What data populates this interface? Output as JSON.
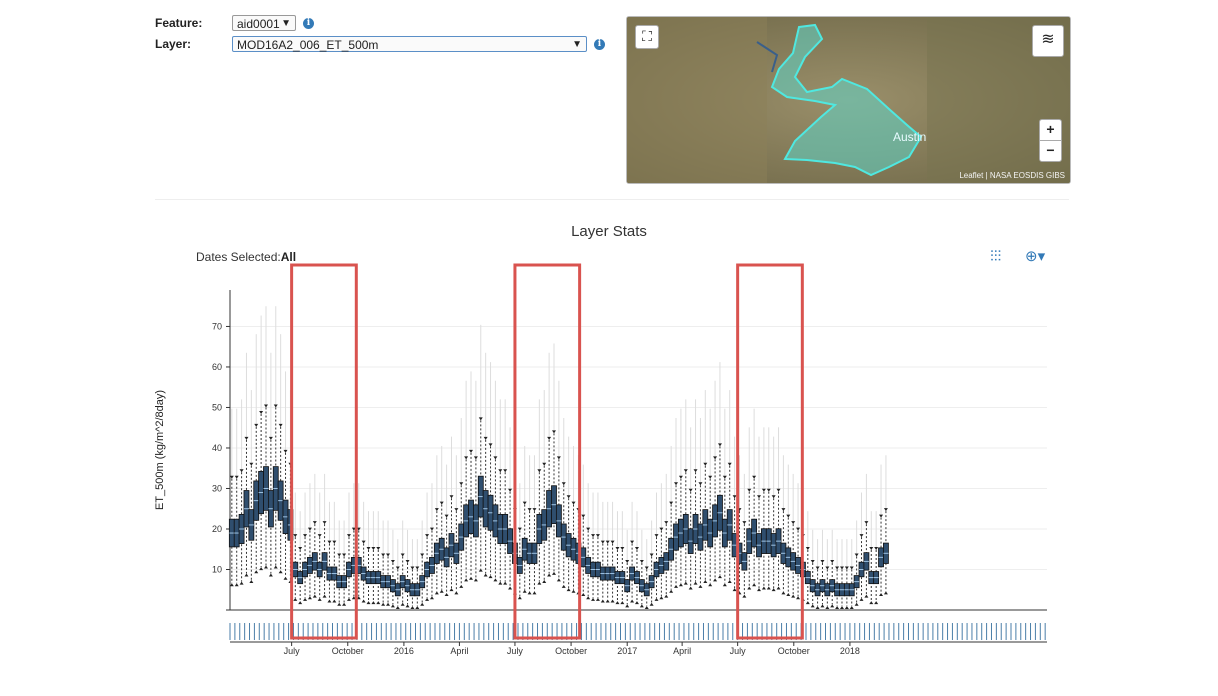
{
  "form": {
    "feature_label": "Feature:",
    "feature_value": "aid0001",
    "layer_label": "Layer:",
    "layer_value": "MOD16A2_006_ET_500m",
    "info_glyph": "i"
  },
  "map": {
    "place_label": "Austin",
    "attribution": "Leaflet | NASA EOSDIS GIBS",
    "zoom_in": "+",
    "zoom_out": "−",
    "region_color": "#5fd6c8",
    "terrain_color": "#8a8160"
  },
  "stats": {
    "title": "Layer Stats",
    "dates_label": "Dates Selected:",
    "dates_value": "All"
  },
  "colors": {
    "box_fill": "#2f4e6e",
    "highlight_rect": "#d9534f",
    "brush_ticks": "#4a7ea8",
    "accent": "#337ab7"
  },
  "chart_data": {
    "type": "boxplot",
    "title": "",
    "ylabel": "ET_500m (kg/m^2/8day)",
    "ylim": [
      0,
      79
    ],
    "yticks": [
      10,
      20,
      30,
      40,
      50,
      60,
      70
    ],
    "xlim": [
      "2015-03-22",
      "2018-11-20"
    ],
    "x_ticks": [
      {
        "date": "2015-07-01",
        "label": "July"
      },
      {
        "date": "2015-10-01",
        "label": "October"
      },
      {
        "date": "2016-01-01",
        "label": "2016"
      },
      {
        "date": "2016-04-01",
        "label": "April"
      },
      {
        "date": "2016-07-01",
        "label": "July"
      },
      {
        "date": "2016-10-01",
        "label": "October"
      },
      {
        "date": "2017-01-01",
        "label": "2017"
      },
      {
        "date": "2017-04-01",
        "label": "April"
      },
      {
        "date": "2017-07-01",
        "label": "July"
      },
      {
        "date": "2017-10-01",
        "label": "October"
      },
      {
        "date": "2018-01-01",
        "label": "2018"
      }
    ],
    "highlight_ranges": [
      [
        "2015-07-01",
        "2015-10-15"
      ],
      [
        "2016-07-01",
        "2016-10-15"
      ],
      [
        "2017-07-01",
        "2017-10-15"
      ]
    ],
    "series_start": "2015-03-25",
    "step_days": 8,
    "medians": [
      19,
      19,
      20,
      25,
      21,
      27,
      29,
      30,
      25,
      30,
      27,
      23,
      21,
      10,
      8,
      10,
      11,
      12,
      10,
      12,
      9,
      9,
      7,
      7,
      10,
      11,
      11,
      9,
      8,
      8,
      8,
      7,
      7,
      6,
      5,
      7,
      6,
      5,
      5,
      7,
      10,
      11,
      14,
      15,
      13,
      16,
      14,
      18,
      22,
      23,
      22,
      28,
      25,
      24,
      22,
      20,
      20,
      17,
      14,
      11,
      15,
      14,
      14,
      20,
      21,
      25,
      26,
      22,
      18,
      16,
      15,
      14,
      13,
      11,
      10,
      10,
      9,
      9,
      9,
      8,
      8,
      6,
      9,
      8,
      6,
      5,
      7,
      10,
      11,
      12,
      15,
      18,
      19,
      20,
      17,
      20,
      18,
      21,
      19,
      22,
      24,
      19,
      21,
      16,
      14,
      12,
      17,
      19,
      16,
      17,
      17,
      16,
      17,
      14,
      13,
      12,
      11,
      10,
      8,
      6,
      5,
      6,
      5,
      6,
      5,
      5,
      5,
      5,
      7,
      10,
      12,
      8,
      8,
      13,
      14
    ]
  }
}
